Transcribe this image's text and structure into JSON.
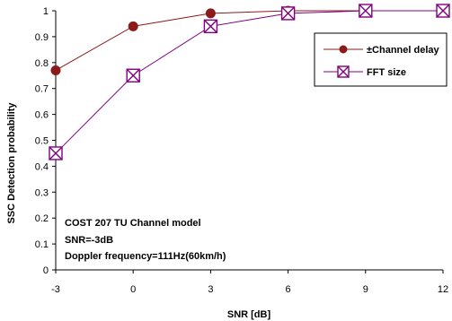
{
  "chart_data": {
    "type": "line",
    "title": "",
    "xlabel": "SNR [dB]",
    "ylabel": "SSC Detection probability",
    "xlim": [
      -3,
      12
    ],
    "ylim": [
      0,
      1
    ],
    "x_ticks": [
      -3,
      0,
      3,
      6,
      9,
      12
    ],
    "x_tick_labels": [
      "-3",
      "0",
      "3",
      "6",
      "9",
      "12"
    ],
    "y_ticks": [
      0,
      0.1,
      0.2,
      0.3,
      0.4,
      0.5,
      0.6,
      0.7,
      0.8,
      0.9,
      1
    ],
    "y_tick_labels": [
      "0",
      "0.1",
      "0.2",
      "0.3",
      "0.4",
      "0.5",
      "0.6",
      "0.7",
      "0.8",
      "0.9",
      "1"
    ],
    "grid": false,
    "legend_position": "top-right",
    "series": [
      {
        "name": "±Channel delay",
        "marker": "circle",
        "color": "#8b1a1a",
        "x": [
          -3,
          0,
          3,
          6,
          9,
          12
        ],
        "y": [
          0.77,
          0.94,
          0.99,
          1.0,
          1.0,
          1.0
        ]
      },
      {
        "name": "FFT size",
        "marker": "x-square",
        "color": "#800080",
        "x": [
          -3,
          0,
          3,
          6,
          9,
          12
        ],
        "y": [
          0.45,
          0.75,
          0.94,
          0.99,
          1.0,
          1.0
        ]
      }
    ],
    "annotations": [
      "COST 207 TU Channel model",
      "SNR=-3dB",
      "Doppler frequency=111Hz(60km/h)"
    ]
  }
}
